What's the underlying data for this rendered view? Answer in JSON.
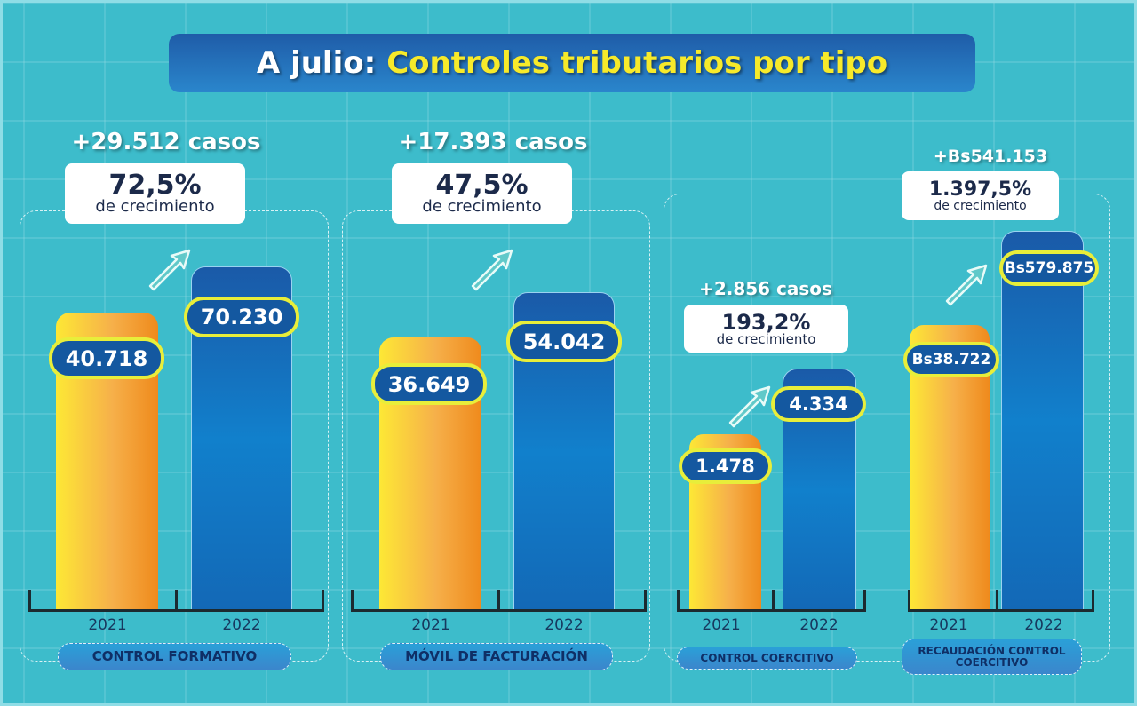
{
  "title": {
    "prefix": "A julio:",
    "main": "Controles tributarios por tipo"
  },
  "colors": {
    "background": "#3dbccb",
    "bar_2021": "#f6a83a",
    "bar_2022": "#1368b6",
    "label_border": "#e8ee3a",
    "title_highlight": "#f7ea2a"
  },
  "chart_data": {
    "type": "bar",
    "title": "A julio: Controles tributarios por tipo",
    "categories": [
      "2021",
      "2022"
    ],
    "groups": [
      {
        "name": "CONTROL FORMATIVO",
        "values": [
          40718,
          70230
        ],
        "labels": [
          "40.718",
          "70.230"
        ],
        "increase": "+29.512 casos",
        "growth": "72,5%",
        "growth_label": "de crecimiento"
      },
      {
        "name": "MÓVIL DE FACTURACIÓN",
        "values": [
          36649,
          54042
        ],
        "labels": [
          "36.649",
          "54.042"
        ],
        "increase": "+17.393 casos",
        "growth": "47,5%",
        "growth_label": "de crecimiento"
      },
      {
        "name": "CONTROL COERCITIVO",
        "values": [
          1478,
          4334
        ],
        "labels": [
          "1.478",
          "4.334"
        ],
        "increase": "+2.856 casos",
        "growth": "193,2%",
        "growth_label": "de crecimiento"
      },
      {
        "name": "RECAUDACIÓN CONTROL COERCITIVO",
        "values": [
          38722,
          579875
        ],
        "labels": [
          "Bs38.722",
          "Bs579.875"
        ],
        "increase": "+Bs541.153",
        "growth": "1.397,5%",
        "growth_label": "de crecimiento",
        "unit": "Bs"
      }
    ],
    "grid": false
  }
}
